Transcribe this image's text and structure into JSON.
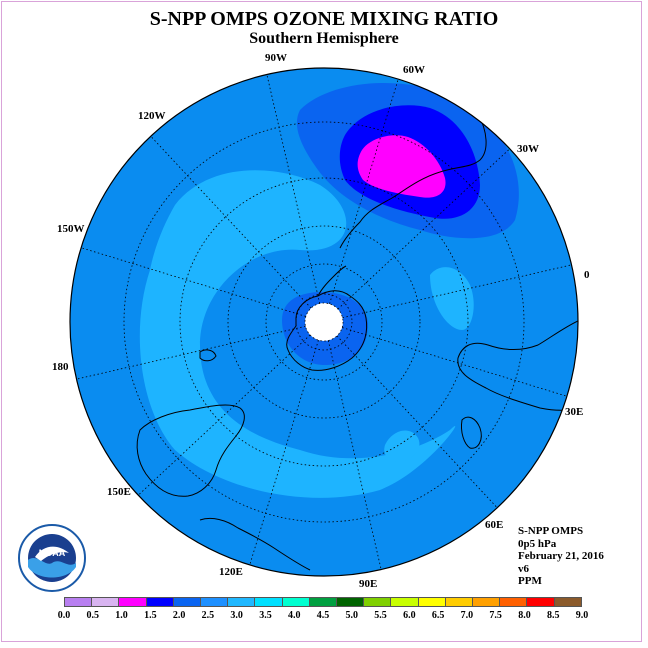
{
  "title": "S-NPP OMPS OZONE MIXING RATIO",
  "subtitle": "Southern Hemisphere",
  "info": {
    "instrument": "S-NPP OMPS",
    "level": "0p5 hPa",
    "date": "February 21, 2016",
    "version": "v6",
    "units": "PPM"
  },
  "longitude_labels": [
    "90W",
    "60W",
    "30W",
    "0",
    "30E",
    "60E",
    "90E",
    "120E",
    "150E",
    "180",
    "150W",
    "120W"
  ],
  "colorbar": {
    "colors": [
      "#b87ff0",
      "#d8b4f0",
      "#ff00ff",
      "#0000ff",
      "#0a64f0",
      "#1e90ff",
      "#20b8ff",
      "#00e0ff",
      "#00ffd0",
      "#00a040",
      "#006400",
      "#80d000",
      "#c8ff00",
      "#ffff00",
      "#ffcc00",
      "#ffa000",
      "#ff6000",
      "#ff0000",
      "#8b5a2b"
    ],
    "ticks": [
      "0.0",
      "0.5",
      "1.0",
      "1.5",
      "2.0",
      "2.5",
      "3.0",
      "3.5",
      "4.0",
      "4.5",
      "5.0",
      "5.5",
      "6.0",
      "6.5",
      "7.0",
      "7.5",
      "8.0",
      "8.5",
      "9.0"
    ]
  },
  "map_colors": {
    "background_field": "#0a8cf0",
    "mid_band": "#1eb4ff",
    "core_band": "#0a64f0",
    "high_band": "#0000ff",
    "max_band": "#ff00ff",
    "pole_hole": "#ffffff",
    "coast": "#000000"
  },
  "logo": {
    "text": "NOAA",
    "icon": "noaa-logo-icon"
  }
}
